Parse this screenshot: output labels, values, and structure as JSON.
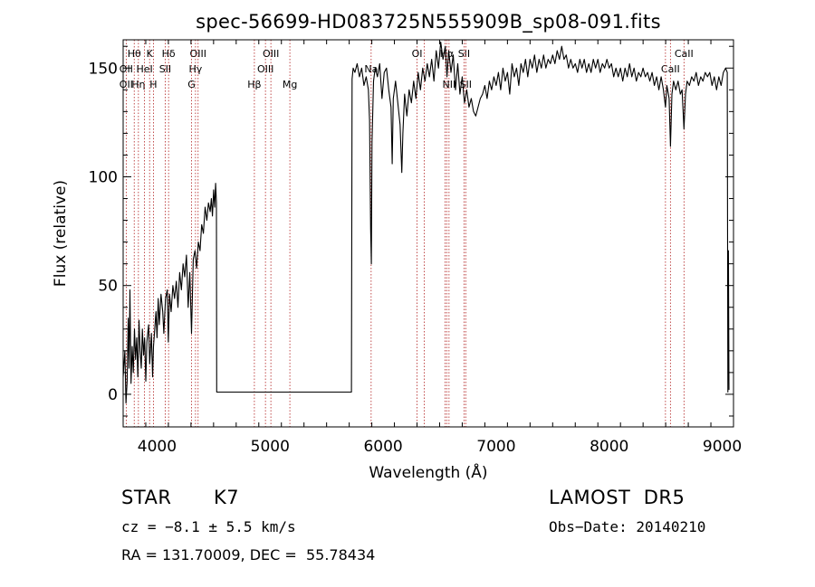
{
  "chart_data": {
    "type": "line",
    "title": "spec-56699-HD083725N555909B_sp08-091.fits",
    "xlabel": "Wavelength (Å)",
    "ylabel": "Flux (relative)",
    "xlim": [
      3700,
      9100
    ],
    "ylim": [
      -15,
      163
    ],
    "xticks": [
      4000,
      5000,
      6000,
      7000,
      8000,
      9000
    ],
    "yticks": [
      0,
      50,
      100,
      150
    ],
    "line_color": "#000000",
    "marker_color": "#b22222",
    "grid": false,
    "series": [
      {
        "points": [
          [
            3700,
            8
          ],
          [
            3715,
            20
          ],
          [
            3725,
            -4
          ],
          [
            3735,
            6
          ],
          [
            3745,
            35
          ],
          [
            3752,
            12
          ],
          [
            3760,
            48
          ],
          [
            3770,
            5
          ],
          [
            3780,
            22
          ],
          [
            3790,
            10
          ],
          [
            3800,
            30
          ],
          [
            3810,
            16
          ],
          [
            3820,
            26
          ],
          [
            3830,
            8
          ],
          [
            3840,
            34
          ],
          [
            3850,
            20
          ],
          [
            3860,
            12
          ],
          [
            3870,
            30
          ],
          [
            3880,
            18
          ],
          [
            3890,
            26
          ],
          [
            3900,
            6
          ],
          [
            3910,
            24
          ],
          [
            3925,
            32
          ],
          [
            3935,
            14
          ],
          [
            3950,
            28
          ],
          [
            3960,
            8
          ],
          [
            3968,
            22
          ],
          [
            3980,
            30
          ],
          [
            3990,
            38
          ],
          [
            4000,
            26
          ],
          [
            4010,
            44
          ],
          [
            4020,
            32
          ],
          [
            4035,
            46
          ],
          [
            4050,
            38
          ],
          [
            4060,
            28
          ],
          [
            4075,
            44
          ],
          [
            4090,
            48
          ],
          [
            4100,
            24
          ],
          [
            4110,
            46
          ],
          [
            4125,
            38
          ],
          [
            4140,
            50
          ],
          [
            4155,
            44
          ],
          [
            4170,
            52
          ],
          [
            4185,
            40
          ],
          [
            4200,
            56
          ],
          [
            4215,
            48
          ],
          [
            4230,
            60
          ],
          [
            4245,
            54
          ],
          [
            4260,
            64
          ],
          [
            4275,
            40
          ],
          [
            4290,
            56
          ],
          [
            4305,
            28
          ],
          [
            4320,
            62
          ],
          [
            4335,
            66
          ],
          [
            4350,
            58
          ],
          [
            4365,
            70
          ],
          [
            4380,
            66
          ],
          [
            4395,
            78
          ],
          [
            4410,
            74
          ],
          [
            4425,
            86
          ],
          [
            4440,
            80
          ],
          [
            4455,
            88
          ],
          [
            4470,
            84
          ],
          [
            4480,
            90
          ],
          [
            4490,
            82
          ],
          [
            4500,
            94
          ],
          [
            4510,
            86
          ],
          [
            4518,
            97
          ],
          [
            4525,
            88
          ],
          [
            4528,
            1
          ],
          [
            5720,
            1
          ],
          [
            5725,
            145
          ],
          [
            5735,
            150
          ],
          [
            5750,
            148
          ],
          [
            5770,
            152
          ],
          [
            5790,
            146
          ],
          [
            5810,
            150
          ],
          [
            5830,
            142
          ],
          [
            5850,
            146
          ],
          [
            5870,
            140
          ],
          [
            5880,
            126
          ],
          [
            5890,
            76
          ],
          [
            5896,
            60
          ],
          [
            5902,
            116
          ],
          [
            5915,
            144
          ],
          [
            5930,
            150
          ],
          [
            5950,
            146
          ],
          [
            5970,
            152
          ],
          [
            5990,
            136
          ],
          [
            6010,
            148
          ],
          [
            6030,
            150
          ],
          [
            6050,
            140
          ],
          [
            6070,
            132
          ],
          [
            6080,
            106
          ],
          [
            6090,
            136
          ],
          [
            6110,
            144
          ],
          [
            6130,
            134
          ],
          [
            6150,
            124
          ],
          [
            6165,
            102
          ],
          [
            6175,
            120
          ],
          [
            6190,
            138
          ],
          [
            6210,
            128
          ],
          [
            6230,
            140
          ],
          [
            6250,
            134
          ],
          [
            6270,
            144
          ],
          [
            6290,
            136
          ],
          [
            6310,
            148
          ],
          [
            6330,
            140
          ],
          [
            6350,
            150
          ],
          [
            6370,
            144
          ],
          [
            6390,
            152
          ],
          [
            6410,
            146
          ],
          [
            6430,
            154
          ],
          [
            6450,
            144
          ],
          [
            6470,
            158
          ],
          [
            6490,
            150
          ],
          [
            6510,
            162
          ],
          [
            6530,
            154
          ],
          [
            6550,
            160
          ],
          [
            6565,
            146
          ],
          [
            6580,
            158
          ],
          [
            6600,
            148
          ],
          [
            6620,
            156
          ],
          [
            6640,
            140
          ],
          [
            6660,
            152
          ],
          [
            6680,
            138
          ],
          [
            6700,
            146
          ],
          [
            6720,
            134
          ],
          [
            6740,
            140
          ],
          [
            6760,
            132
          ],
          [
            6780,
            136
          ],
          [
            6800,
            130
          ],
          [
            6820,
            128
          ],
          [
            6840,
            132
          ],
          [
            6860,
            136
          ],
          [
            6880,
            138
          ],
          [
            6900,
            142
          ],
          [
            6920,
            136
          ],
          [
            6940,
            144
          ],
          [
            6960,
            140
          ],
          [
            6980,
            146
          ],
          [
            7000,
            142
          ],
          [
            7020,
            148
          ],
          [
            7040,
            140
          ],
          [
            7060,
            150
          ],
          [
            7080,
            144
          ],
          [
            7100,
            148
          ],
          [
            7120,
            138
          ],
          [
            7140,
            152
          ],
          [
            7160,
            146
          ],
          [
            7180,
            150
          ],
          [
            7200,
            142
          ],
          [
            7220,
            152
          ],
          [
            7240,
            148
          ],
          [
            7260,
            154
          ],
          [
            7280,
            146
          ],
          [
            7300,
            154
          ],
          [
            7320,
            150
          ],
          [
            7340,
            156
          ],
          [
            7360,
            148
          ],
          [
            7380,
            154
          ],
          [
            7400,
            150
          ],
          [
            7420,
            156
          ],
          [
            7440,
            150
          ],
          [
            7460,
            154
          ],
          [
            7480,
            152
          ],
          [
            7500,
            156
          ],
          [
            7520,
            152
          ],
          [
            7540,
            158
          ],
          [
            7560,
            154
          ],
          [
            7580,
            160
          ],
          [
            7600,
            154
          ],
          [
            7620,
            156
          ],
          [
            7640,
            150
          ],
          [
            7660,
            154
          ],
          [
            7680,
            150
          ],
          [
            7700,
            152
          ],
          [
            7720,
            148
          ],
          [
            7740,
            154
          ],
          [
            7760,
            150
          ],
          [
            7780,
            154
          ],
          [
            7800,
            148
          ],
          [
            7820,
            152
          ],
          [
            7840,
            148
          ],
          [
            7860,
            154
          ],
          [
            7880,
            150
          ],
          [
            7900,
            154
          ],
          [
            7920,
            148
          ],
          [
            7940,
            152
          ],
          [
            7960,
            150
          ],
          [
            7980,
            154
          ],
          [
            8000,
            150
          ],
          [
            8020,
            152
          ],
          [
            8040,
            146
          ],
          [
            8060,
            150
          ],
          [
            8080,
            146
          ],
          [
            8100,
            150
          ],
          [
            8120,
            144
          ],
          [
            8140,
            150
          ],
          [
            8160,
            146
          ],
          [
            8180,
            152
          ],
          [
            8200,
            146
          ],
          [
            8220,
            150
          ],
          [
            8240,
            144
          ],
          [
            8260,
            148
          ],
          [
            8280,
            146
          ],
          [
            8300,
            150
          ],
          [
            8320,
            146
          ],
          [
            8340,
            148
          ],
          [
            8360,
            144
          ],
          [
            8380,
            148
          ],
          [
            8400,
            142
          ],
          [
            8420,
            146
          ],
          [
            8440,
            140
          ],
          [
            8460,
            146
          ],
          [
            8480,
            140
          ],
          [
            8498,
            132
          ],
          [
            8510,
            142
          ],
          [
            8530,
            136
          ],
          [
            8542,
            114
          ],
          [
            8555,
            138
          ],
          [
            8570,
            144
          ],
          [
            8590,
            140
          ],
          [
            8610,
            144
          ],
          [
            8630,
            138
          ],
          [
            8645,
            140
          ],
          [
            8662,
            122
          ],
          [
            8675,
            138
          ],
          [
            8690,
            144
          ],
          [
            8710,
            142
          ],
          [
            8730,
            146
          ],
          [
            8750,
            144
          ],
          [
            8770,
            148
          ],
          [
            8790,
            142
          ],
          [
            8810,
            146
          ],
          [
            8830,
            144
          ],
          [
            8850,
            148
          ],
          [
            8870,
            146
          ],
          [
            8890,
            148
          ],
          [
            8910,
            142
          ],
          [
            8930,
            146
          ],
          [
            8950,
            140
          ],
          [
            8970,
            146
          ],
          [
            8990,
            142
          ],
          [
            9010,
            148
          ],
          [
            9030,
            150
          ],
          [
            9045,
            148
          ],
          [
            9050,
            1
          ],
          [
            9055,
            66
          ],
          [
            9060,
            2
          ]
        ]
      }
    ],
    "line_markers": [
      {
        "label": "Hθ",
        "wl": 3798,
        "row": 1
      },
      {
        "label": "OII",
        "wl": 3727,
        "row": 3
      },
      {
        "label": "OII",
        "wl": 3727,
        "row": 2,
        "no_line": true
      },
      {
        "label": "Hη",
        "wl": 3835,
        "row": 3
      },
      {
        "label": "HeI",
        "wl": 3889,
        "row": 2
      },
      {
        "label": "K",
        "wl": 3934,
        "row": 1
      },
      {
        "label": "H",
        "wl": 3968,
        "row": 3
      },
      {
        "label": "SII",
        "wl": 4072,
        "row": 2
      },
      {
        "label": "Hδ",
        "wl": 4102,
        "row": 1
      },
      {
        "label": "OIII",
        "wl": 4363,
        "row": 1
      },
      {
        "label": "Hγ",
        "wl": 4340,
        "row": 2
      },
      {
        "label": "G",
        "wl": 4305,
        "row": 3
      },
      {
        "label": "Hβ",
        "wl": 4861,
        "row": 3
      },
      {
        "label": "OIII",
        "wl": 4959,
        "row": 2
      },
      {
        "label": "OIII",
        "wl": 5007,
        "row": 1
      },
      {
        "label": "Mg",
        "wl": 5175,
        "row": 3
      },
      {
        "label": "Na",
        "wl": 5894,
        "row": 2
      },
      {
        "label": "OI",
        "wl": 6300,
        "row": 1
      },
      {
        "label": "",
        "wl": 6364,
        "row": 0
      },
      {
        "label": "Hα",
        "wl": 6563,
        "row": 1
      },
      {
        "label": "SII",
        "wl": 6716,
        "row": 1
      },
      {
        "label": "NII",
        "wl": 6583,
        "row": 3
      },
      {
        "label": "SII",
        "wl": 6731,
        "row": 3
      },
      {
        "label": "NII",
        "wl": 6548,
        "row": 0
      },
      {
        "label": "CaII",
        "wl": 8662,
        "row": 1
      },
      {
        "label": "CaII",
        "wl": 8542,
        "row": 2
      },
      {
        "label": "",
        "wl": 8498,
        "row": 0
      }
    ]
  },
  "info": {
    "object_class": "STAR",
    "subclass": "K7",
    "survey": "LAMOST  DR5",
    "cz": "cz = −8.1 ± 5.5 km/s",
    "obs_date": "Obs−Date: 20140210",
    "coords": "RA = 131.70009, DEC =  55.78434"
  }
}
